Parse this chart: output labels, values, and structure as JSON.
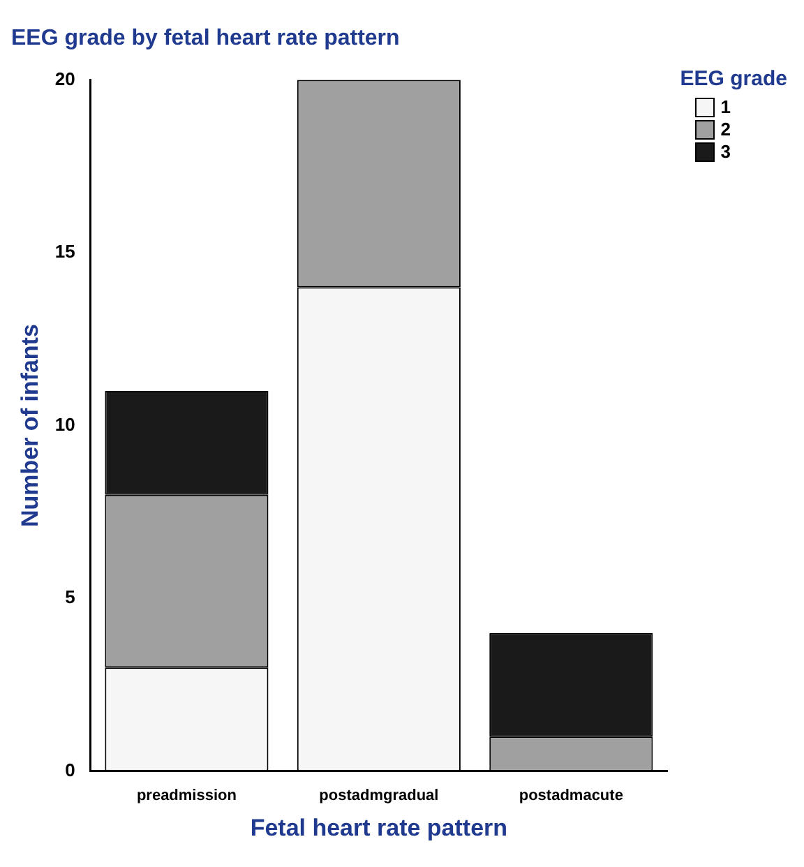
{
  "chart_data": {
    "type": "bar",
    "title": "EEG grade by fetal heart rate pattern",
    "xlabel": "Fetal heart rate pattern",
    "ylabel": "Number of infants",
    "legend_title": "EEG grade",
    "categories": [
      "preadmission",
      "postadmgradual",
      "postadmacute"
    ],
    "series": [
      {
        "name": "1",
        "color": "#f6f6f6",
        "values": [
          3,
          14,
          0
        ]
      },
      {
        "name": "2",
        "color": "#a0a0a0",
        "values": [
          5,
          6,
          1
        ]
      },
      {
        "name": "3",
        "color": "#1a1a1a",
        "values": [
          3,
          0,
          3
        ]
      }
    ],
    "stacked": true,
    "ylim": [
      0,
      20
    ],
    "yticks": [
      0,
      5,
      10,
      15,
      20
    ],
    "grid": false,
    "legend": "top right"
  }
}
